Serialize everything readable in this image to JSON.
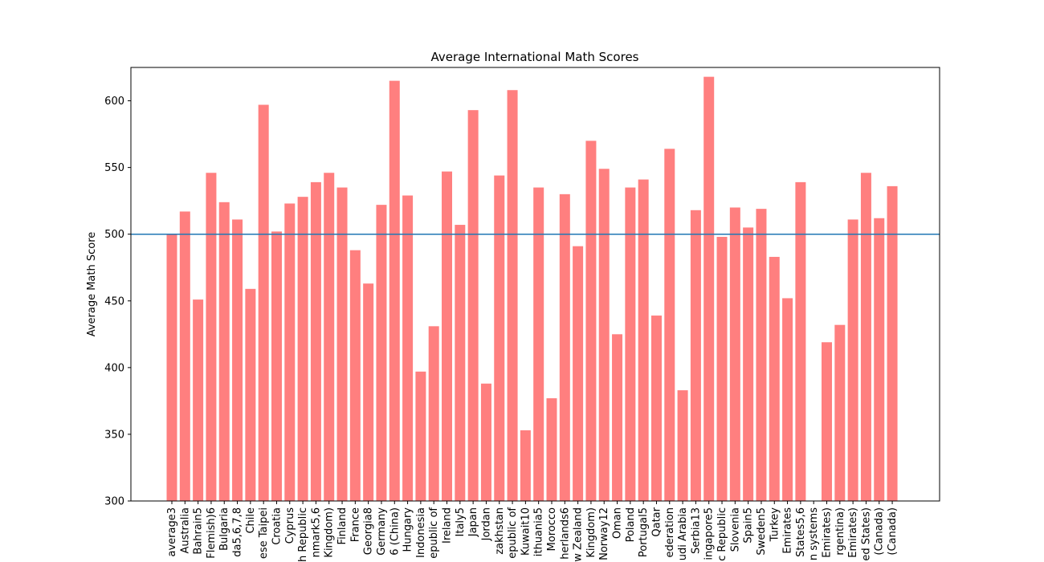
{
  "colors": {
    "bar": "#ff7f7f",
    "reference_line": "#1f77b4",
    "axes": "#000000",
    "background": "#ffffff"
  },
  "chart_data": {
    "type": "bar",
    "title": "Average International Math Scores",
    "xlabel": "",
    "ylabel": "Average Math Score",
    "ylim": [
      300,
      625
    ],
    "yticks": [
      300,
      350,
      400,
      450,
      500,
      550,
      600
    ],
    "reference_line": 500,
    "grid": false,
    "legend": false,
    "categories": [
      "average3",
      "Australia",
      "Bahrain5",
      "Flemish)6",
      "Bulgaria",
      "da5,6,7,8",
      "Chile",
      "ese Taipei",
      "Croatia",
      "Cyprus",
      "h Republic",
      "nmark5,6",
      "Kingdom)",
      "Finland",
      "France",
      "Georgia8",
      "Germany",
      "6 (China)",
      "Hungary",
      "Indonesia",
      "epublic of",
      "Ireland",
      "Italy5",
      "Japan",
      "Jordan",
      "zakhstan",
      "epublic of",
      "Kuwait10",
      "ithuania5",
      "Morocco",
      "herlands6",
      "w Zealand",
      "Kingdom)",
      "Norway12",
      "Oman",
      "Poland",
      "Portugal5",
      "Qatar",
      "ederation",
      "udi Arabia",
      "Serbia13",
      "ingapore5",
      "c Republic",
      "Slovenia",
      "Spain5",
      "Sweden5",
      "Turkey",
      "Emirates",
      "States5,6",
      "n systems",
      "Emirates)",
      "rgentina)",
      "Emirates)",
      "ed States)",
      "(Canada)",
      "(Canada)"
    ],
    "values": [
      500,
      517,
      451,
      546,
      524,
      511,
      459,
      597,
      502,
      523,
      528,
      539,
      546,
      535,
      488,
      463,
      522,
      615,
      529,
      397,
      431,
      547,
      507,
      593,
      388,
      544,
      608,
      353,
      535,
      377,
      530,
      491,
      570,
      549,
      425,
      535,
      541,
      439,
      564,
      383,
      518,
      618,
      498,
      520,
      505,
      519,
      483,
      452,
      539,
      null,
      419,
      432,
      511,
      546,
      512,
      536
    ]
  }
}
